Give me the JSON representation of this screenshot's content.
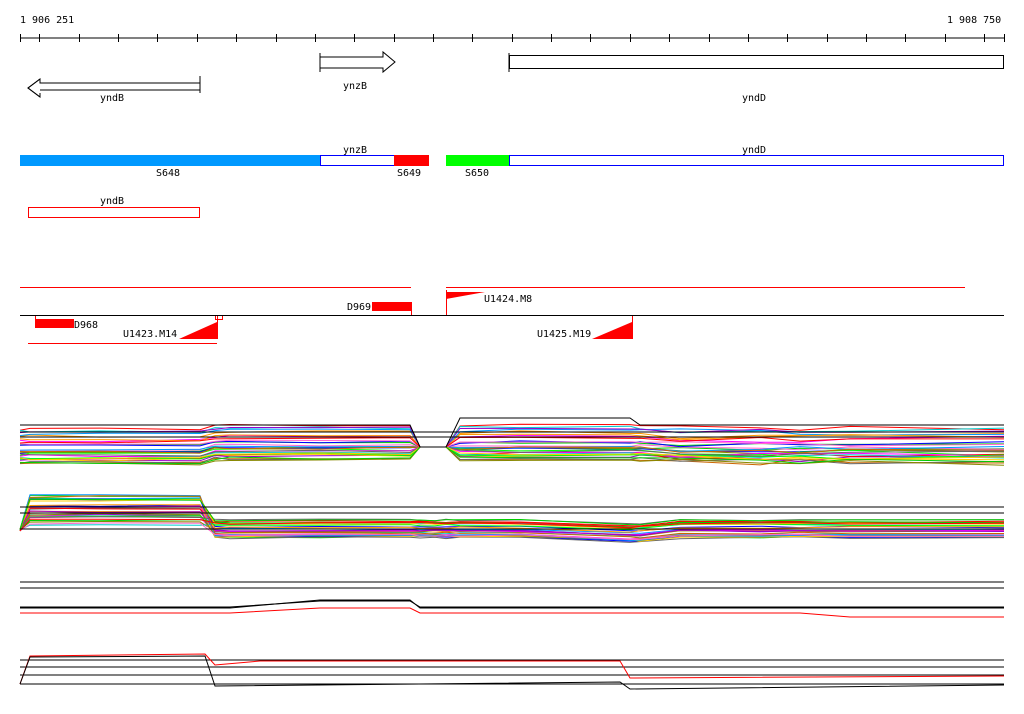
{
  "ruler": {
    "start_label": "1 906 251",
    "end_label": "1 908 750",
    "start": 1906251,
    "end": 1908750
  },
  "genes": [
    {
      "name": "yndB",
      "strand": "-"
    },
    {
      "name": "ynzB",
      "strand": "+"
    },
    {
      "name": "yndD",
      "strand": "+"
    }
  ],
  "segments": {
    "s648": "S648",
    "s649": "S649",
    "s650": "S650",
    "ynzB": "ynzB",
    "yndD": "yndD",
    "yndB": "yndB"
  },
  "features": {
    "d968": "D968",
    "d969": "D969",
    "u1423": "U1423.M14",
    "u1424": "U1424.M8",
    "u1425": "U1425.M19"
  },
  "colors": {
    "s648": "#0099ff",
    "s649": "#ff0000",
    "s650": "#00ff00",
    "feature": "#ff0000",
    "box_border": "#0000ff"
  }
}
